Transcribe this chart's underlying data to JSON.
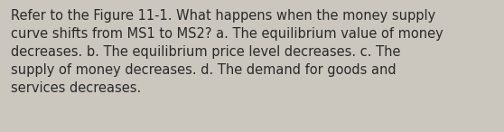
{
  "text": "Refer to the Figure 11-1. What happens when the money supply\ncurve shifts from MS1 to MS2? a. The equilibrium value of money\ndecreases. b. The equilibrium price level decreases. c. The\nsupply of money decreases. d. The demand for goods and\nservices decreases.",
  "background_color": "#cbc7bf",
  "text_color": "#2a2a2a",
  "font_size": 10.5,
  "fig_width": 5.58,
  "fig_height": 1.46,
  "dpi": 100
}
